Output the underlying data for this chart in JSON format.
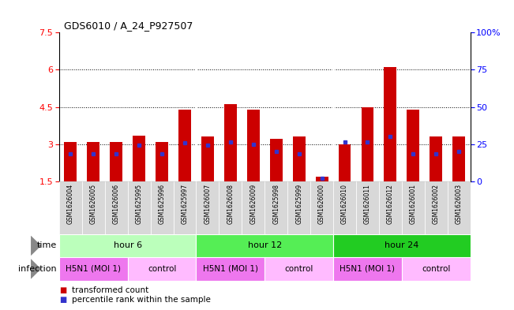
{
  "title": "GDS6010 / A_24_P927507",
  "samples": [
    "GSM1626004",
    "GSM1626005",
    "GSM1626006",
    "GSM1625995",
    "GSM1625996",
    "GSM1625997",
    "GSM1626007",
    "GSM1626008",
    "GSM1626009",
    "GSM1625998",
    "GSM1625999",
    "GSM1626000",
    "GSM1626010",
    "GSM1626011",
    "GSM1626012",
    "GSM1626001",
    "GSM1626002",
    "GSM1626003"
  ],
  "bar_heights": [
    3.1,
    3.1,
    3.1,
    3.35,
    3.1,
    4.4,
    3.3,
    4.6,
    4.4,
    3.2,
    3.3,
    1.7,
    3.0,
    4.5,
    6.1,
    4.4,
    3.3,
    3.3
  ],
  "blue_marker_positions": [
    2.62,
    2.62,
    2.62,
    2.95,
    2.62,
    3.05,
    2.95,
    3.1,
    3.0,
    2.7,
    2.62,
    1.62,
    3.1,
    3.1,
    3.3,
    2.62,
    2.62,
    2.7
  ],
  "ymin": 1.5,
  "ymax": 7.5,
  "yticks": [
    1.5,
    3.0,
    4.5,
    6.0,
    7.5
  ],
  "ytick_labels": [
    "1.5",
    "3",
    "4.5",
    "6",
    "7.5"
  ],
  "right_yticks": [
    0,
    25,
    50,
    75,
    100
  ],
  "right_ytick_labels": [
    "0",
    "25",
    "50",
    "75",
    "100%"
  ],
  "dotted_lines": [
    3.0,
    4.5,
    6.0
  ],
  "bar_color": "#CC0000",
  "blue_color": "#3333CC",
  "bg_color": "#FFFFFF",
  "xticklabel_bg": "#D8D8D8",
  "time_groups": [
    {
      "label": "hour 6",
      "start": 0,
      "end": 6,
      "color": "#BBFFBB"
    },
    {
      "label": "hour 12",
      "start": 6,
      "end": 12,
      "color": "#55EE55"
    },
    {
      "label": "hour 24",
      "start": 12,
      "end": 18,
      "color": "#22CC22"
    }
  ],
  "infection_groups": [
    {
      "label": "H5N1 (MOI 1)",
      "start": 0,
      "end": 3,
      "color": "#EE77EE"
    },
    {
      "label": "control",
      "start": 3,
      "end": 6,
      "color": "#FFBBFF"
    },
    {
      "label": "H5N1 (MOI 1)",
      "start": 6,
      "end": 9,
      "color": "#EE77EE"
    },
    {
      "label": "control",
      "start": 9,
      "end": 12,
      "color": "#FFBBFF"
    },
    {
      "label": "H5N1 (MOI 1)",
      "start": 12,
      "end": 15,
      "color": "#EE77EE"
    },
    {
      "label": "control",
      "start": 15,
      "end": 18,
      "color": "#FFBBFF"
    }
  ],
  "bar_width": 0.55
}
